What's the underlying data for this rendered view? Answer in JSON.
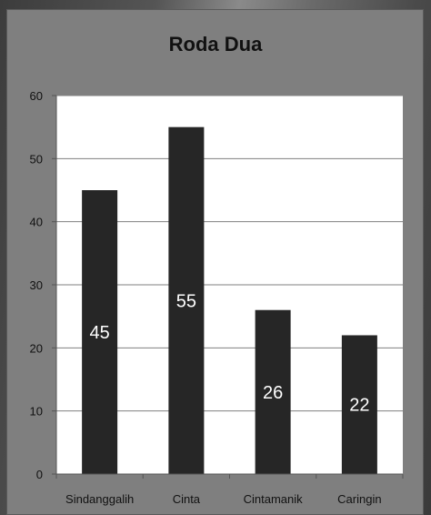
{
  "chart_data": {
    "type": "bar",
    "title": "Roda Dua",
    "categories": [
      "Sindanggalih",
      "Cinta",
      "Cintamanik",
      "Caringin"
    ],
    "values": [
      45,
      55,
      26,
      22
    ],
    "data_labels": [
      "45",
      "55",
      "26",
      "22"
    ],
    "ylim": [
      0,
      60
    ],
    "yticks": [
      0,
      10,
      20,
      30,
      40,
      50,
      60
    ],
    "ytick_labels": [
      "0",
      "10",
      "20",
      "30",
      "40",
      "50",
      "60"
    ],
    "grid": true,
    "legend": "none",
    "colors": {
      "bar": "#262626",
      "plot_bg": "#ffffff",
      "frame_bg": "#7f7f7f",
      "grid": "#7f7f7f"
    }
  }
}
